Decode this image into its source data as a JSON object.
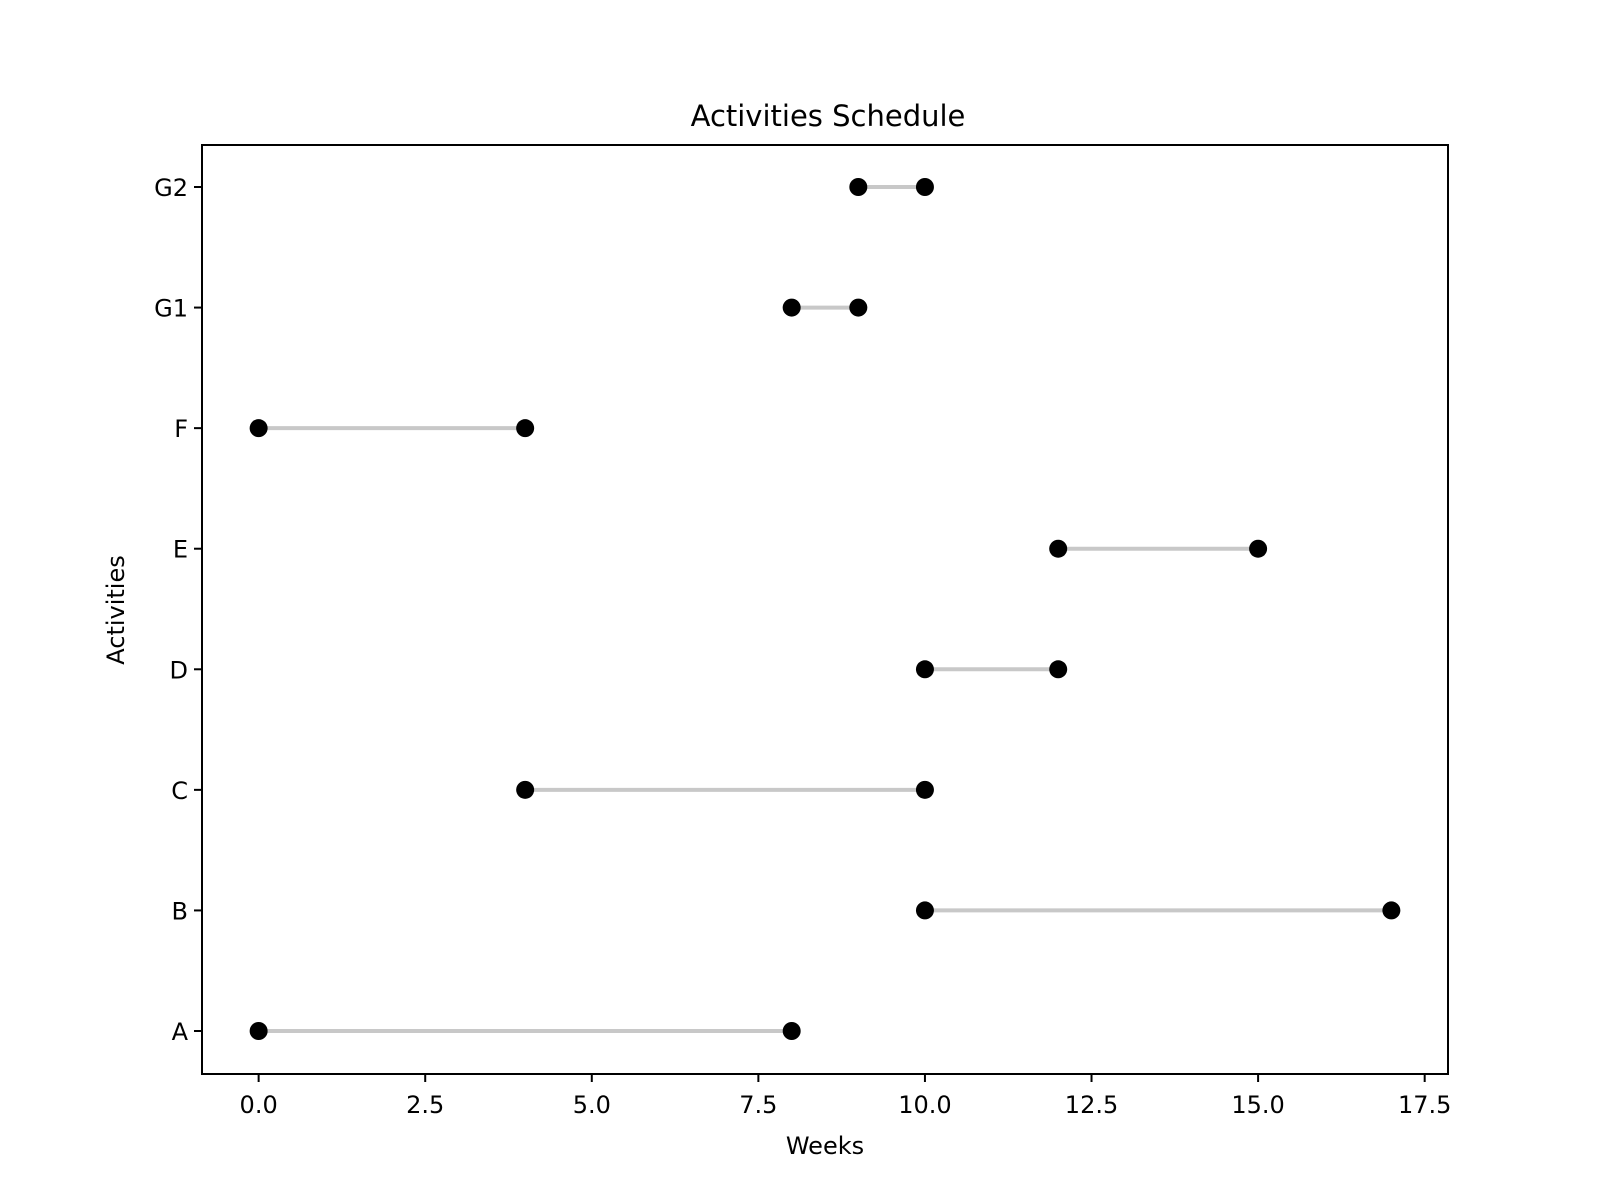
{
  "chart_data": {
    "type": "dumbbell",
    "title": "Activities Schedule",
    "xlabel": "Weeks",
    "ylabel": "Activities",
    "xlim": [
      -0.85,
      17.85
    ],
    "xticks": [
      0.0,
      2.5,
      5.0,
      7.5,
      10.0,
      12.5,
      15.0,
      17.5
    ],
    "xtick_labels": [
      "0.0",
      "2.5",
      "5.0",
      "7.5",
      "10.0",
      "12.5",
      "15.0",
      "17.5"
    ],
    "categories": [
      "A",
      "B",
      "C",
      "D",
      "E",
      "F",
      "G1",
      "G2"
    ],
    "start": [
      0,
      10,
      4,
      10,
      12,
      0,
      8,
      9
    ],
    "end": [
      8,
      17,
      10,
      12,
      15,
      4,
      9,
      10
    ],
    "grid": false,
    "colors": {
      "marker": "#000000",
      "connector": "#c8c8c8",
      "frame": "#000000"
    }
  }
}
